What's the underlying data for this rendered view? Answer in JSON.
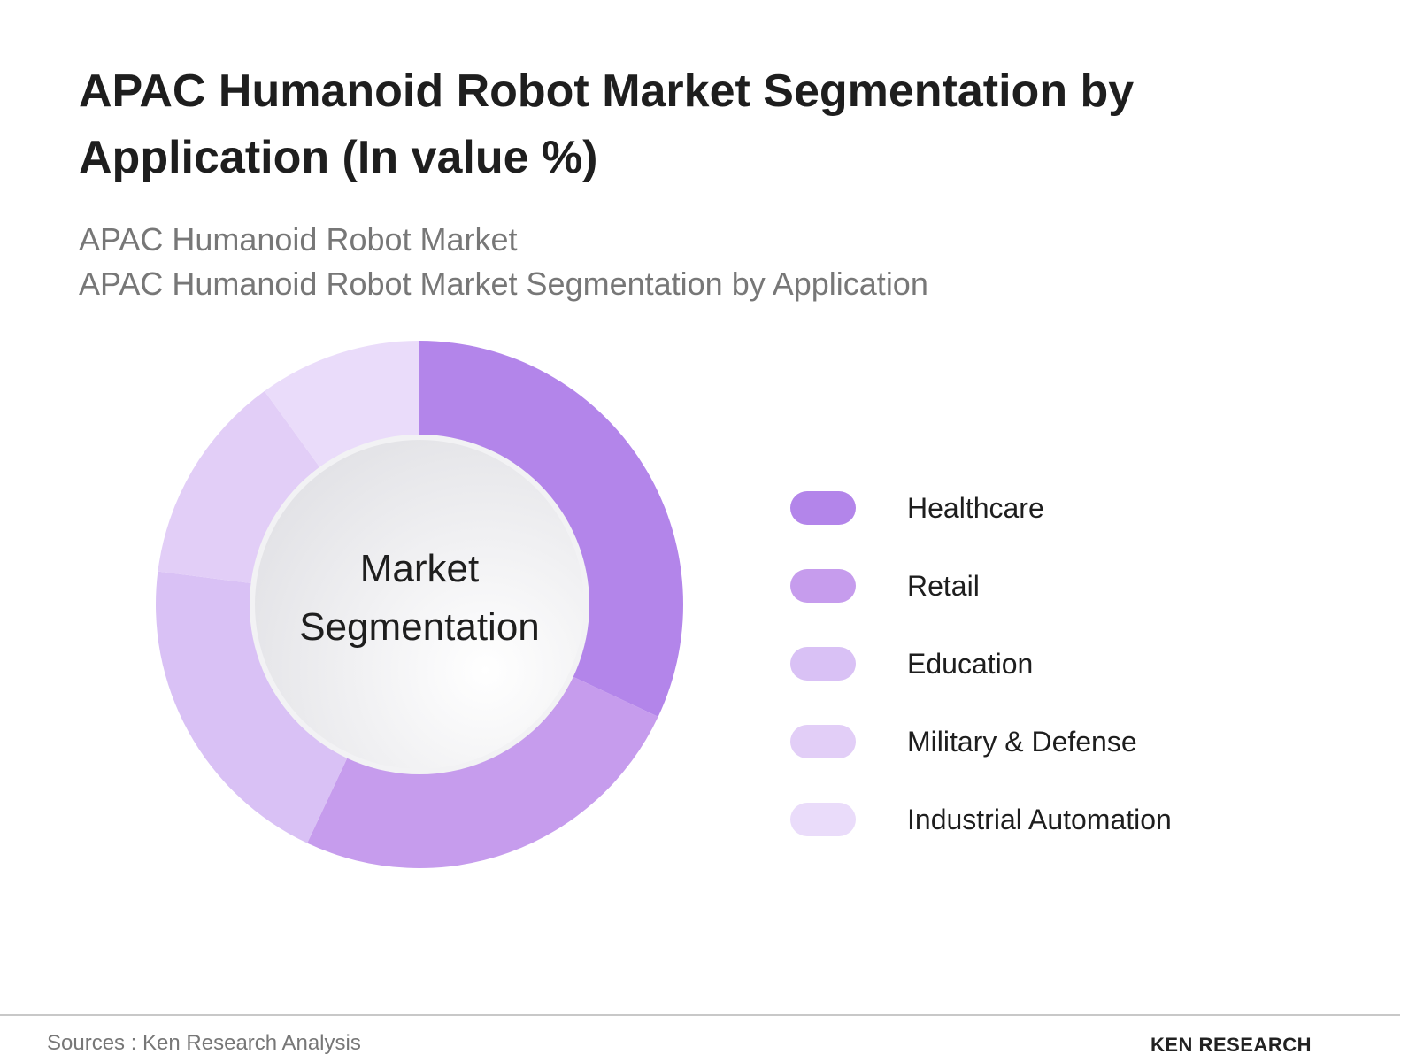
{
  "chart_data": {
    "type": "donut",
    "title": "APAC Humanoid Robot Market Segmentation by Application (In value %)",
    "subtitle": [
      "APAC Humanoid Robot Market",
      "APAC Humanoid Robot Market Segmentation by Application"
    ],
    "center_label": "Market Segmentation",
    "categories": [
      "Healthcare",
      "Retail",
      "Education",
      "Military & Defense",
      "Industrial Automation"
    ],
    "values": [
      32,
      25,
      20,
      13,
      10
    ],
    "colors": [
      "#b385ea",
      "#c69ced",
      "#d9c1f5",
      "#e2cef7",
      "#eadcfa"
    ],
    "legend": "right"
  },
  "footer": {
    "source": "Sources : Ken Research Analysis",
    "logo": "KEN RESEARCH"
  }
}
